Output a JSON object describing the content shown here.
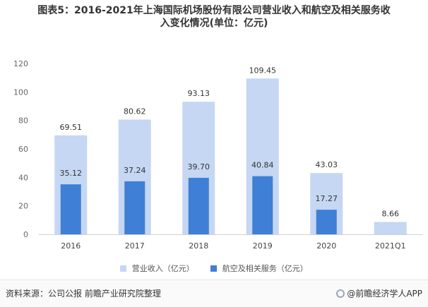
{
  "title_lines": [
    "图表5：2016-2021年上海国际机场股份有限公司营业收入和航空及相关服务收",
    "入变化情况(单位：亿元)"
  ],
  "chart_data": {
    "type": "bar",
    "categories": [
      "2016",
      "2017",
      "2018",
      "2019",
      "2020",
      "2021Q1"
    ],
    "series": [
      {
        "name": "营业收入（亿元）",
        "values": [
          69.51,
          80.62,
          93.13,
          109.45,
          43.03,
          8.66
        ],
        "color": "#c5d7f2"
      },
      {
        "name": "航空及相关服务（亿元）",
        "values": [
          35.12,
          37.24,
          39.7,
          40.84,
          17.27,
          null
        ],
        "color": "#3f7fd6"
      }
    ],
    "value_labels": [
      [
        "69.51",
        "80.62",
        "93.13",
        "109.45",
        "43.03",
        "8.66"
      ],
      [
        "35.12",
        "37.24",
        "39.70",
        "40.84",
        "17.27",
        ""
      ]
    ],
    "ylim": [
      0,
      120
    ],
    "yticks": [
      0,
      20,
      40,
      60,
      80,
      100,
      120
    ],
    "ytick_labels": [
      "0",
      "20",
      "40",
      "60",
      "80",
      "100",
      "120"
    ],
    "legend_position": "bottom",
    "grid": false
  },
  "footer": {
    "source": "资料来源：公司公报 前瞻产业研究院整理",
    "brand": "@前瞻经济学人APP"
  }
}
